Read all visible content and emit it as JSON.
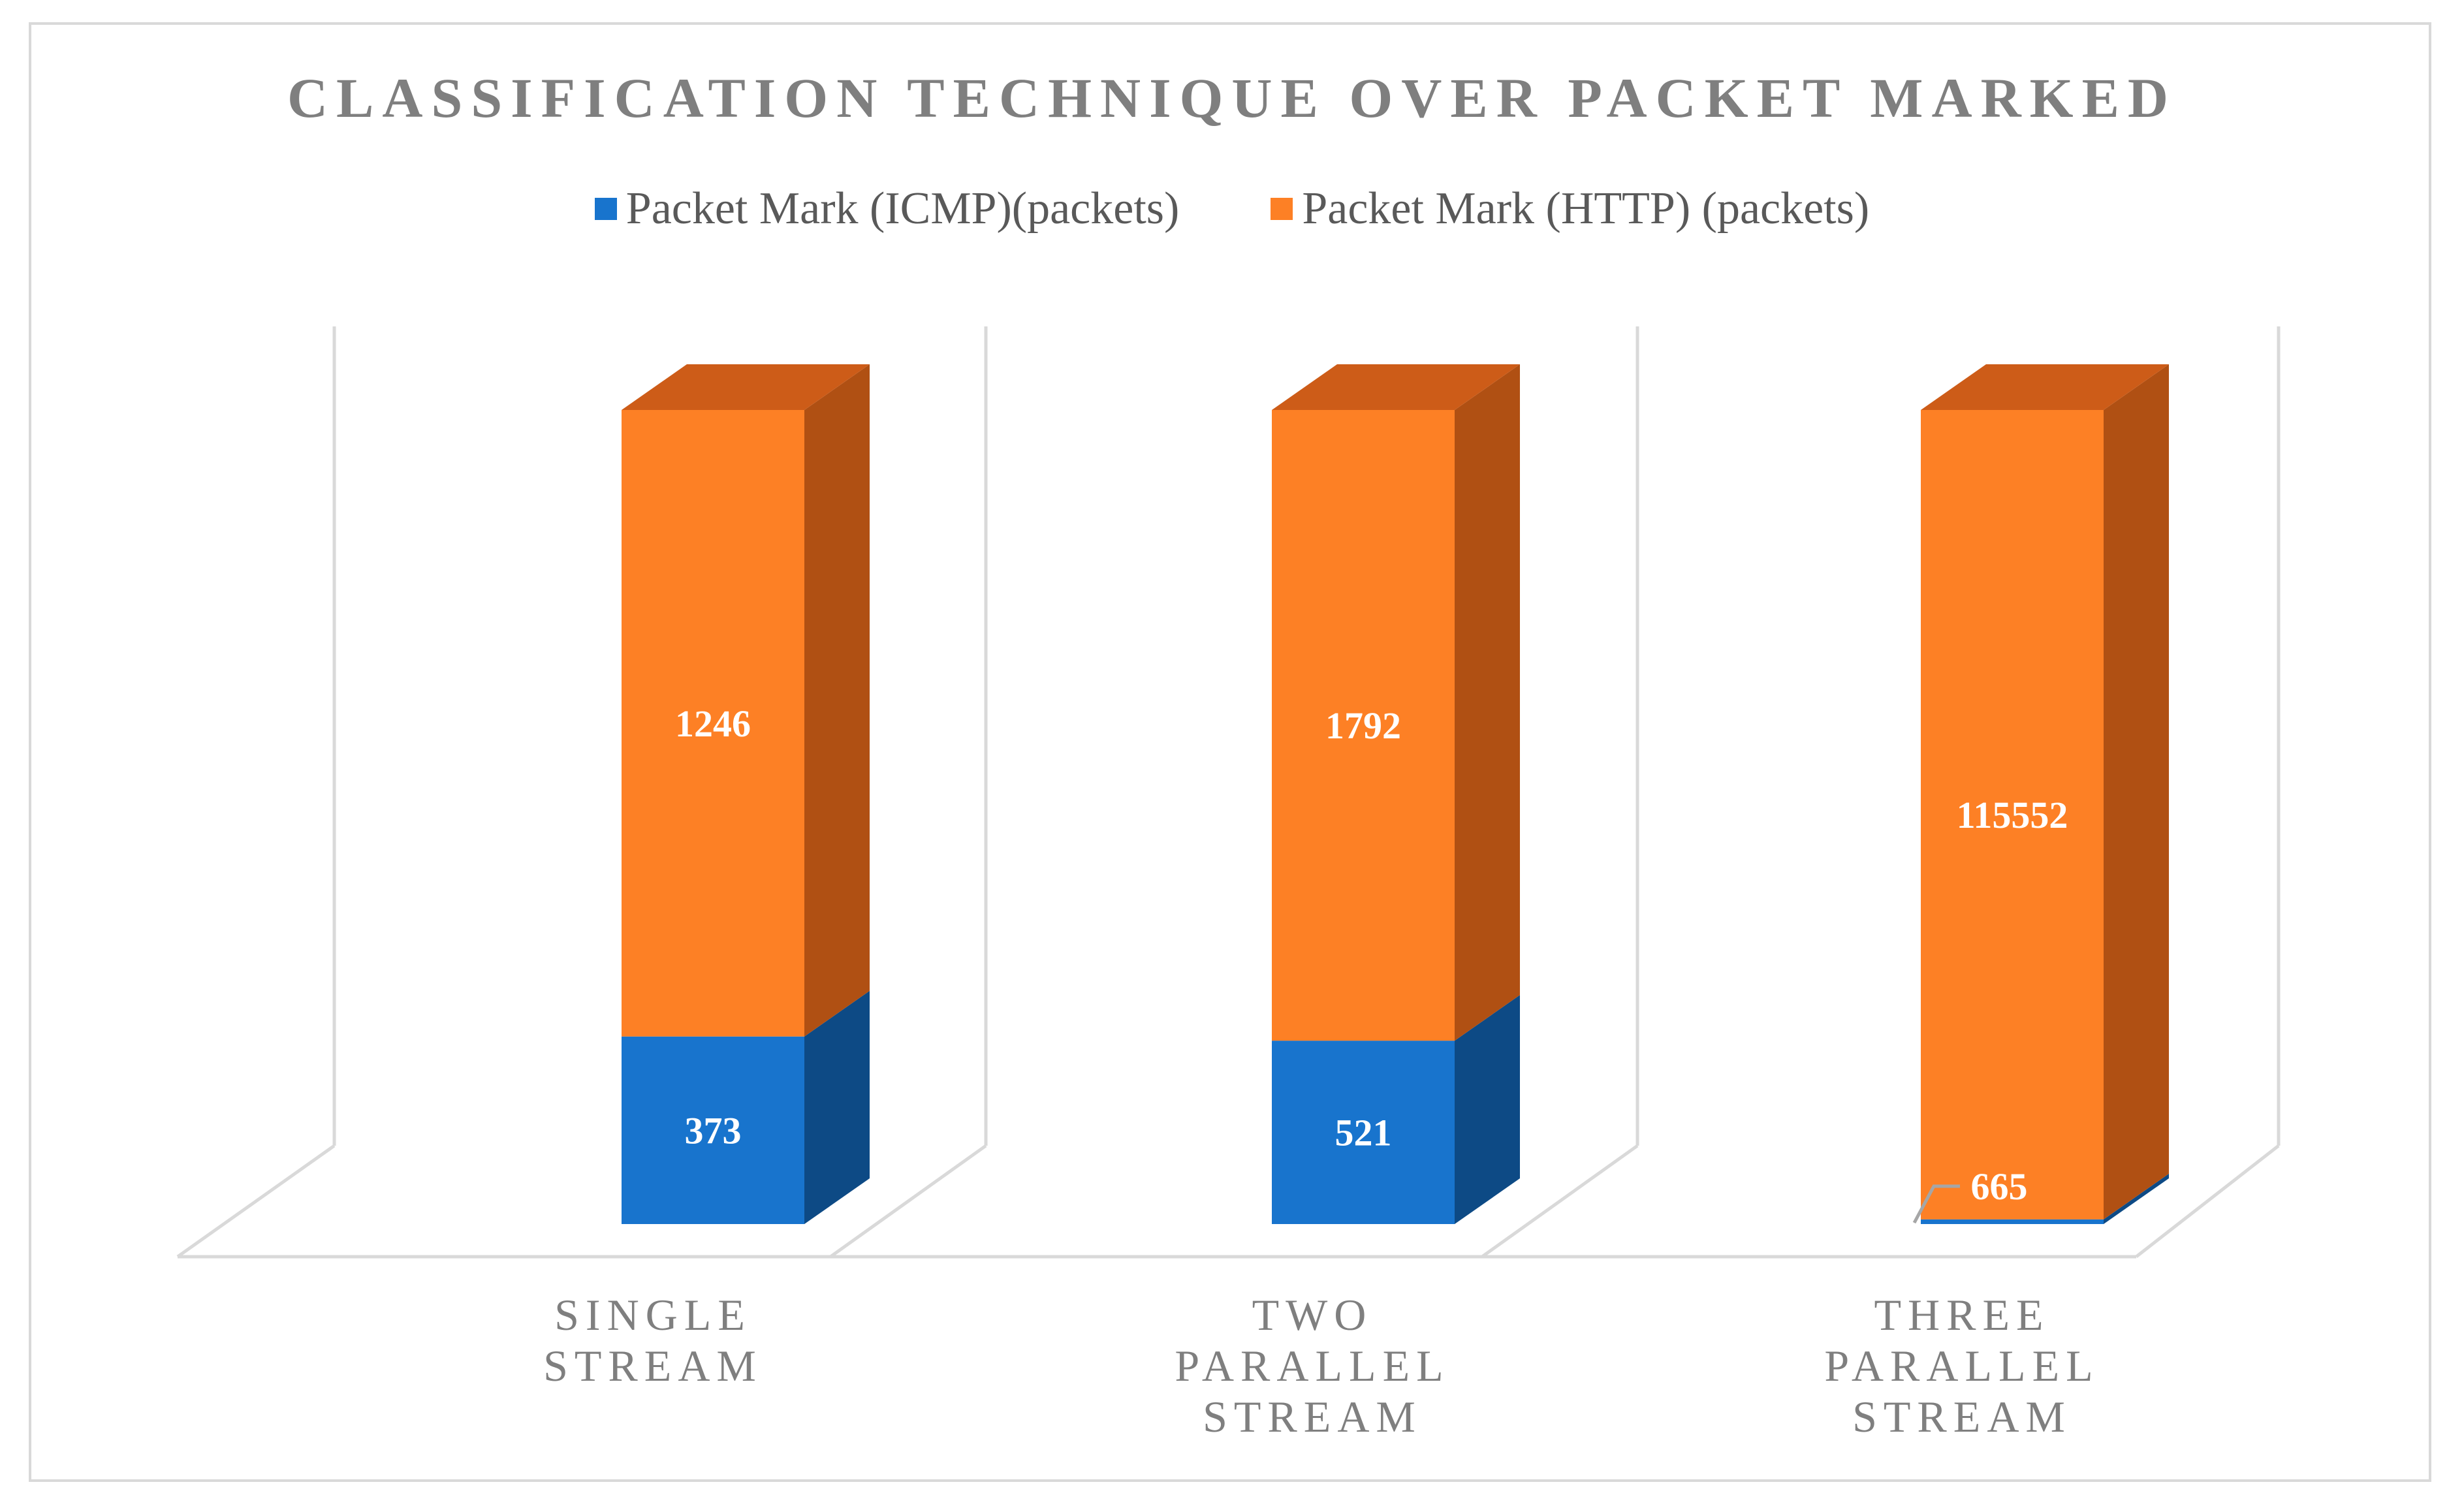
{
  "chart_data": {
    "type": "bar",
    "stacked": true,
    "style": "3d",
    "title": "CLASSIFICATION TECHNIQUE OVER PACKET MARKED",
    "categories": [
      [
        "SINGLE",
        "STREAM"
      ],
      [
        "TWO",
        "PARALLEL",
        "STREAM"
      ],
      [
        "THREE",
        "PARALLEL",
        "STREAM"
      ]
    ],
    "series": [
      {
        "name": "Packet Mark (ICMP)(packets)",
        "color": "#1874cd",
        "side_color": "#0d4a85",
        "values": [
          373,
          521,
          665
        ]
      },
      {
        "name": "Packet Mark (HTTP) (packets)",
        "color": "#fd8025",
        "side_color": "#b05013",
        "top_color": "#cd5c18",
        "values": [
          1246,
          1792,
          115552
        ]
      }
    ],
    "data_labels": {
      "icmp": [
        "373",
        "521",
        "665"
      ],
      "http": [
        "1246",
        "1792",
        "115552"
      ]
    },
    "xlabel": "",
    "ylabel": "",
    "legend": "top",
    "grid": false
  }
}
